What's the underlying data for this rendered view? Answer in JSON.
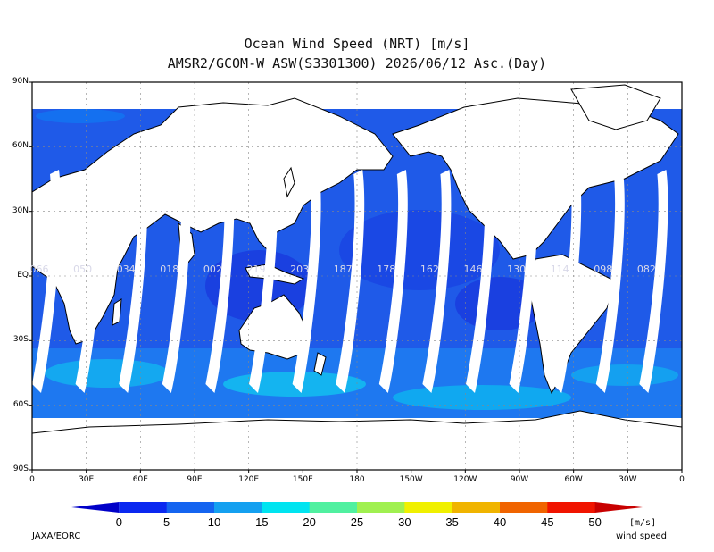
{
  "title": {
    "line1": "Ocean Wind Speed (NRT) [m/s]",
    "line2": "AMSR2/GCOM-W ASW(S3301300) 2026/06/12 Asc.(Day)"
  },
  "map": {
    "projection": "equirectangular",
    "lat_labels": [
      "90N",
      "60N",
      "30N",
      "EQ",
      "30S",
      "60S",
      "90S"
    ],
    "lon_labels": [
      "0",
      "30E",
      "60E",
      "90E",
      "120E",
      "150E",
      "180",
      "150W",
      "120W",
      "90W",
      "60W",
      "30W",
      "0"
    ],
    "swath_labels": [
      "066",
      "050",
      "034",
      "018",
      "002",
      "219",
      "203",
      "187",
      "178",
      "162",
      "146",
      "130",
      "114",
      "098",
      "082"
    ],
    "colors": {
      "ocean_low": "#2040e8",
      "ocean_mid": "#1e6cf0",
      "ocean_high": "#10c8f0",
      "land": "#ffffff",
      "gap": "#ffffff"
    }
  },
  "colorbar": {
    "ticks": [
      "0",
      "5",
      "10",
      "15",
      "20",
      "25",
      "30",
      "35",
      "40",
      "45",
      "50"
    ],
    "colors": [
      "#0000c8",
      "#0a28f0",
      "#1464f0",
      "#14a0f0",
      "#00e4f0",
      "#50f0a0",
      "#a0f050",
      "#f0f000",
      "#f0b400",
      "#f06400",
      "#f01400",
      "#c80000"
    ],
    "unit": "[m/s]",
    "name": "wind speed"
  },
  "credit": "JAXA/EORC"
}
